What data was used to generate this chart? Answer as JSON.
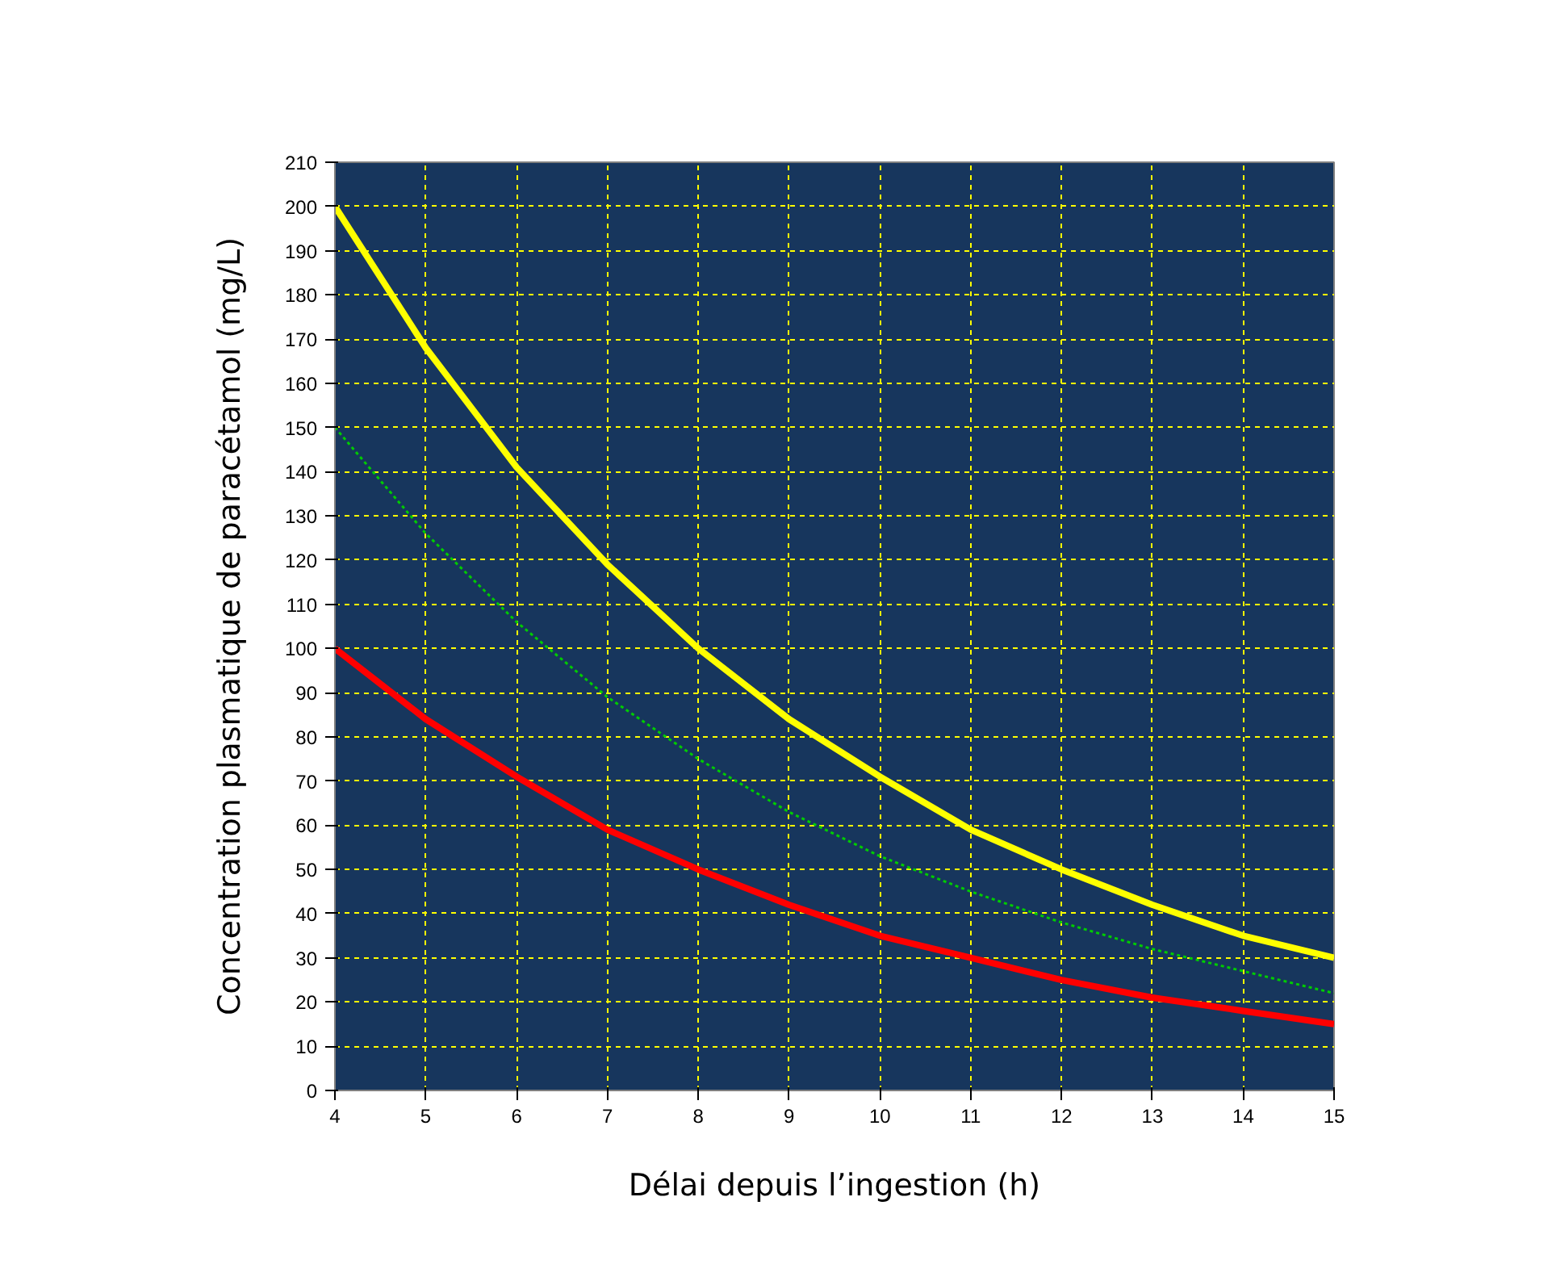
{
  "chart_data": {
    "type": "line",
    "xlabel": "Délai depuis l’ingestion (h)",
    "ylabel": "Concentration plasmatique de paracétamol (mg/L)",
    "x": [
      4,
      5,
      6,
      7,
      8,
      9,
      10,
      11,
      12,
      13,
      14,
      15
    ],
    "xlim": [
      4,
      15
    ],
    "xticks": [
      4,
      5,
      6,
      7,
      8,
      9,
      10,
      11,
      12,
      13,
      14,
      15
    ],
    "ylim": [
      0,
      210
    ],
    "yticks": [
      0,
      10,
      20,
      30,
      40,
      50,
      60,
      70,
      80,
      90,
      100,
      110,
      120,
      130,
      140,
      150,
      160,
      170,
      180,
      190,
      200,
      210
    ],
    "grid": true,
    "marker": "none",
    "series": [
      {
        "color": "#ffff00",
        "values": [
          200,
          168,
          141,
          119,
          100,
          84,
          71,
          59,
          50,
          42,
          35,
          30
        ],
        "line_style": "solid"
      },
      {
        "color": "#00cc00",
        "values": [
          150,
          126,
          106,
          89,
          75,
          63,
          53,
          45,
          38,
          32,
          27,
          22
        ],
        "line_style": "dotted"
      },
      {
        "color": "#ff0000",
        "values": [
          100,
          84,
          71,
          59,
          50,
          42,
          35,
          30,
          25,
          21,
          18,
          15
        ],
        "line_style": "solid"
      }
    ]
  }
}
